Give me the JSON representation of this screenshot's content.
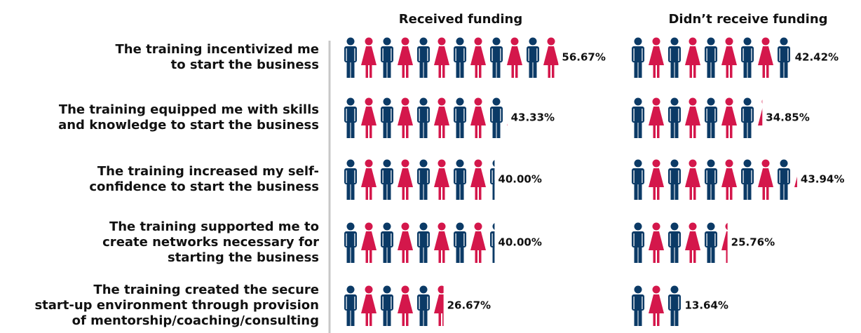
{
  "chart_data": {
    "type": "pictogram",
    "categories": [
      [
        "The training incentivized me",
        "to start the business"
      ],
      [
        "The training equipped me with skills",
        "and knowledge to start the business"
      ],
      [
        "The training increased my self-",
        "confidence to start the business"
      ],
      [
        "The training supported me to",
        "create networks necessary for",
        "starting the business"
      ],
      [
        "The training created the secure",
        "start-up environment through provision",
        "of mentorship/coaching/consulting"
      ]
    ],
    "series": [
      {
        "name": "Received funding",
        "values": [
          56.67,
          43.33,
          40.0,
          40.0,
          26.67
        ],
        "value_labels": [
          "56.67%",
          "43.33%",
          "40.00%",
          "40.00%",
          "26.67%"
        ]
      },
      {
        "name": "Didn’t receive funding",
        "values": [
          42.42,
          34.85,
          43.94,
          25.76,
          13.64
        ],
        "value_labels": [
          "42.42%",
          "34.85%",
          "43.94%",
          "25.76%",
          "13.64%"
        ]
      }
    ],
    "xlim": [
      0,
      100
    ],
    "icon_colors": [
      "#0b3a66",
      "#d4174b"
    ]
  }
}
